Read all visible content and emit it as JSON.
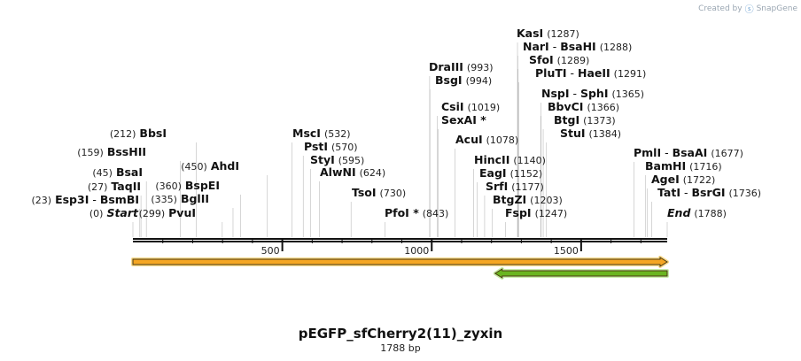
{
  "watermark": {
    "prefix": "Created by",
    "brand": "SnapGene"
  },
  "map": {
    "name": "pEGFP_sfCherry2(11)_zyxin",
    "length_label": "1788 bp",
    "total_bp": 1788,
    "ruler_ticks": [
      "500",
      "1000",
      "1500"
    ],
    "sites": [
      {
        "names": [
          "Start"
        ],
        "pos": "(0)",
        "side": "left",
        "italic": true
      },
      {
        "names": [
          "Esp3I",
          "BsmBI"
        ],
        "pos": "(23)",
        "side": "left"
      },
      {
        "names": [
          "TaqII"
        ],
        "pos": "(27)",
        "side": "left"
      },
      {
        "names": [
          "BsaI"
        ],
        "pos": "(45)",
        "side": "left"
      },
      {
        "names": [
          "BssHII"
        ],
        "pos": "(159)",
        "side": "left"
      },
      {
        "names": [
          "BbsI"
        ],
        "pos": "(212)",
        "side": "left"
      },
      {
        "names": [
          "PvuI"
        ],
        "pos": "(299)",
        "side": "left"
      },
      {
        "names": [
          "BglII"
        ],
        "pos": "(335)",
        "side": "left"
      },
      {
        "names": [
          "BspEI"
        ],
        "pos": "(360)",
        "side": "left"
      },
      {
        "names": [
          "AhdI"
        ],
        "pos": "(450)",
        "side": "left"
      },
      {
        "names": [
          "MscI"
        ],
        "pos": "(532)",
        "side": "right"
      },
      {
        "names": [
          "PstI"
        ],
        "pos": "(570)",
        "side": "right"
      },
      {
        "names": [
          "StyI"
        ],
        "pos": "(595)",
        "side": "right"
      },
      {
        "names": [
          "AlwNI"
        ],
        "pos": "(624)",
        "side": "right"
      },
      {
        "names": [
          "TsoI"
        ],
        "pos": "(730)",
        "side": "right"
      },
      {
        "names": [
          "PfoI *"
        ],
        "pos": "(843)",
        "side": "right"
      },
      {
        "names": [
          "DraIII"
        ],
        "pos": "(993)",
        "side": "right"
      },
      {
        "names": [
          "BsgI"
        ],
        "pos": "(994)",
        "side": "right"
      },
      {
        "names": [
          "CsiI"
        ],
        "pos": "(1019)",
        "side": "right"
      },
      {
        "names": [
          "SexAI *"
        ],
        "pos": "",
        "side": "right"
      },
      {
        "names": [
          "AcuI"
        ],
        "pos": "(1078)",
        "side": "right"
      },
      {
        "names": [
          "HincII"
        ],
        "pos": "(1140)",
        "side": "right"
      },
      {
        "names": [
          "EagI"
        ],
        "pos": "(1152)",
        "side": "right"
      },
      {
        "names": [
          "SrfI"
        ],
        "pos": "(1177)",
        "side": "right"
      },
      {
        "names": [
          "BtgZI"
        ],
        "pos": "(1203)",
        "side": "right"
      },
      {
        "names": [
          "FspI"
        ],
        "pos": "(1247)",
        "side": "right"
      },
      {
        "names": [
          "KasI"
        ],
        "pos": "(1287)",
        "side": "right"
      },
      {
        "names": [
          "NarI",
          "BsaHI"
        ],
        "pos": "(1288)",
        "side": "right"
      },
      {
        "names": [
          "SfoI"
        ],
        "pos": "(1289)",
        "side": "right"
      },
      {
        "names": [
          "PluTI",
          "HaeII"
        ],
        "pos": "(1291)",
        "side": "right"
      },
      {
        "names": [
          "NspI",
          "SphI"
        ],
        "pos": "(1365)",
        "side": "right"
      },
      {
        "names": [
          "BbvCI"
        ],
        "pos": "(1366)",
        "side": "right"
      },
      {
        "names": [
          "BtgI"
        ],
        "pos": "(1373)",
        "side": "right"
      },
      {
        "names": [
          "StuI"
        ],
        "pos": "(1384)",
        "side": "right"
      },
      {
        "names": [
          "PmlI",
          "BsaAI"
        ],
        "pos": "(1677)",
        "side": "right"
      },
      {
        "names": [
          "BamHI"
        ],
        "pos": "(1716)",
        "side": "right"
      },
      {
        "names": [
          "AgeI"
        ],
        "pos": "(1722)",
        "side": "right"
      },
      {
        "names": [
          "TatI",
          "BsrGI"
        ],
        "pos": "(1736)",
        "side": "right"
      },
      {
        "names": [
          "End"
        ],
        "pos": "(1788)",
        "side": "right",
        "italic": true
      }
    ],
    "features": [
      {
        "name": "orange-feature",
        "start": 0,
        "end": 1788,
        "direction": "forward",
        "color": "#f5a623",
        "outline": "#f9d98a"
      },
      {
        "name": "green-feature",
        "start": 1212,
        "end": 1788,
        "direction": "reverse",
        "color": "#6ab520",
        "outline": "#c8eca8"
      }
    ]
  }
}
